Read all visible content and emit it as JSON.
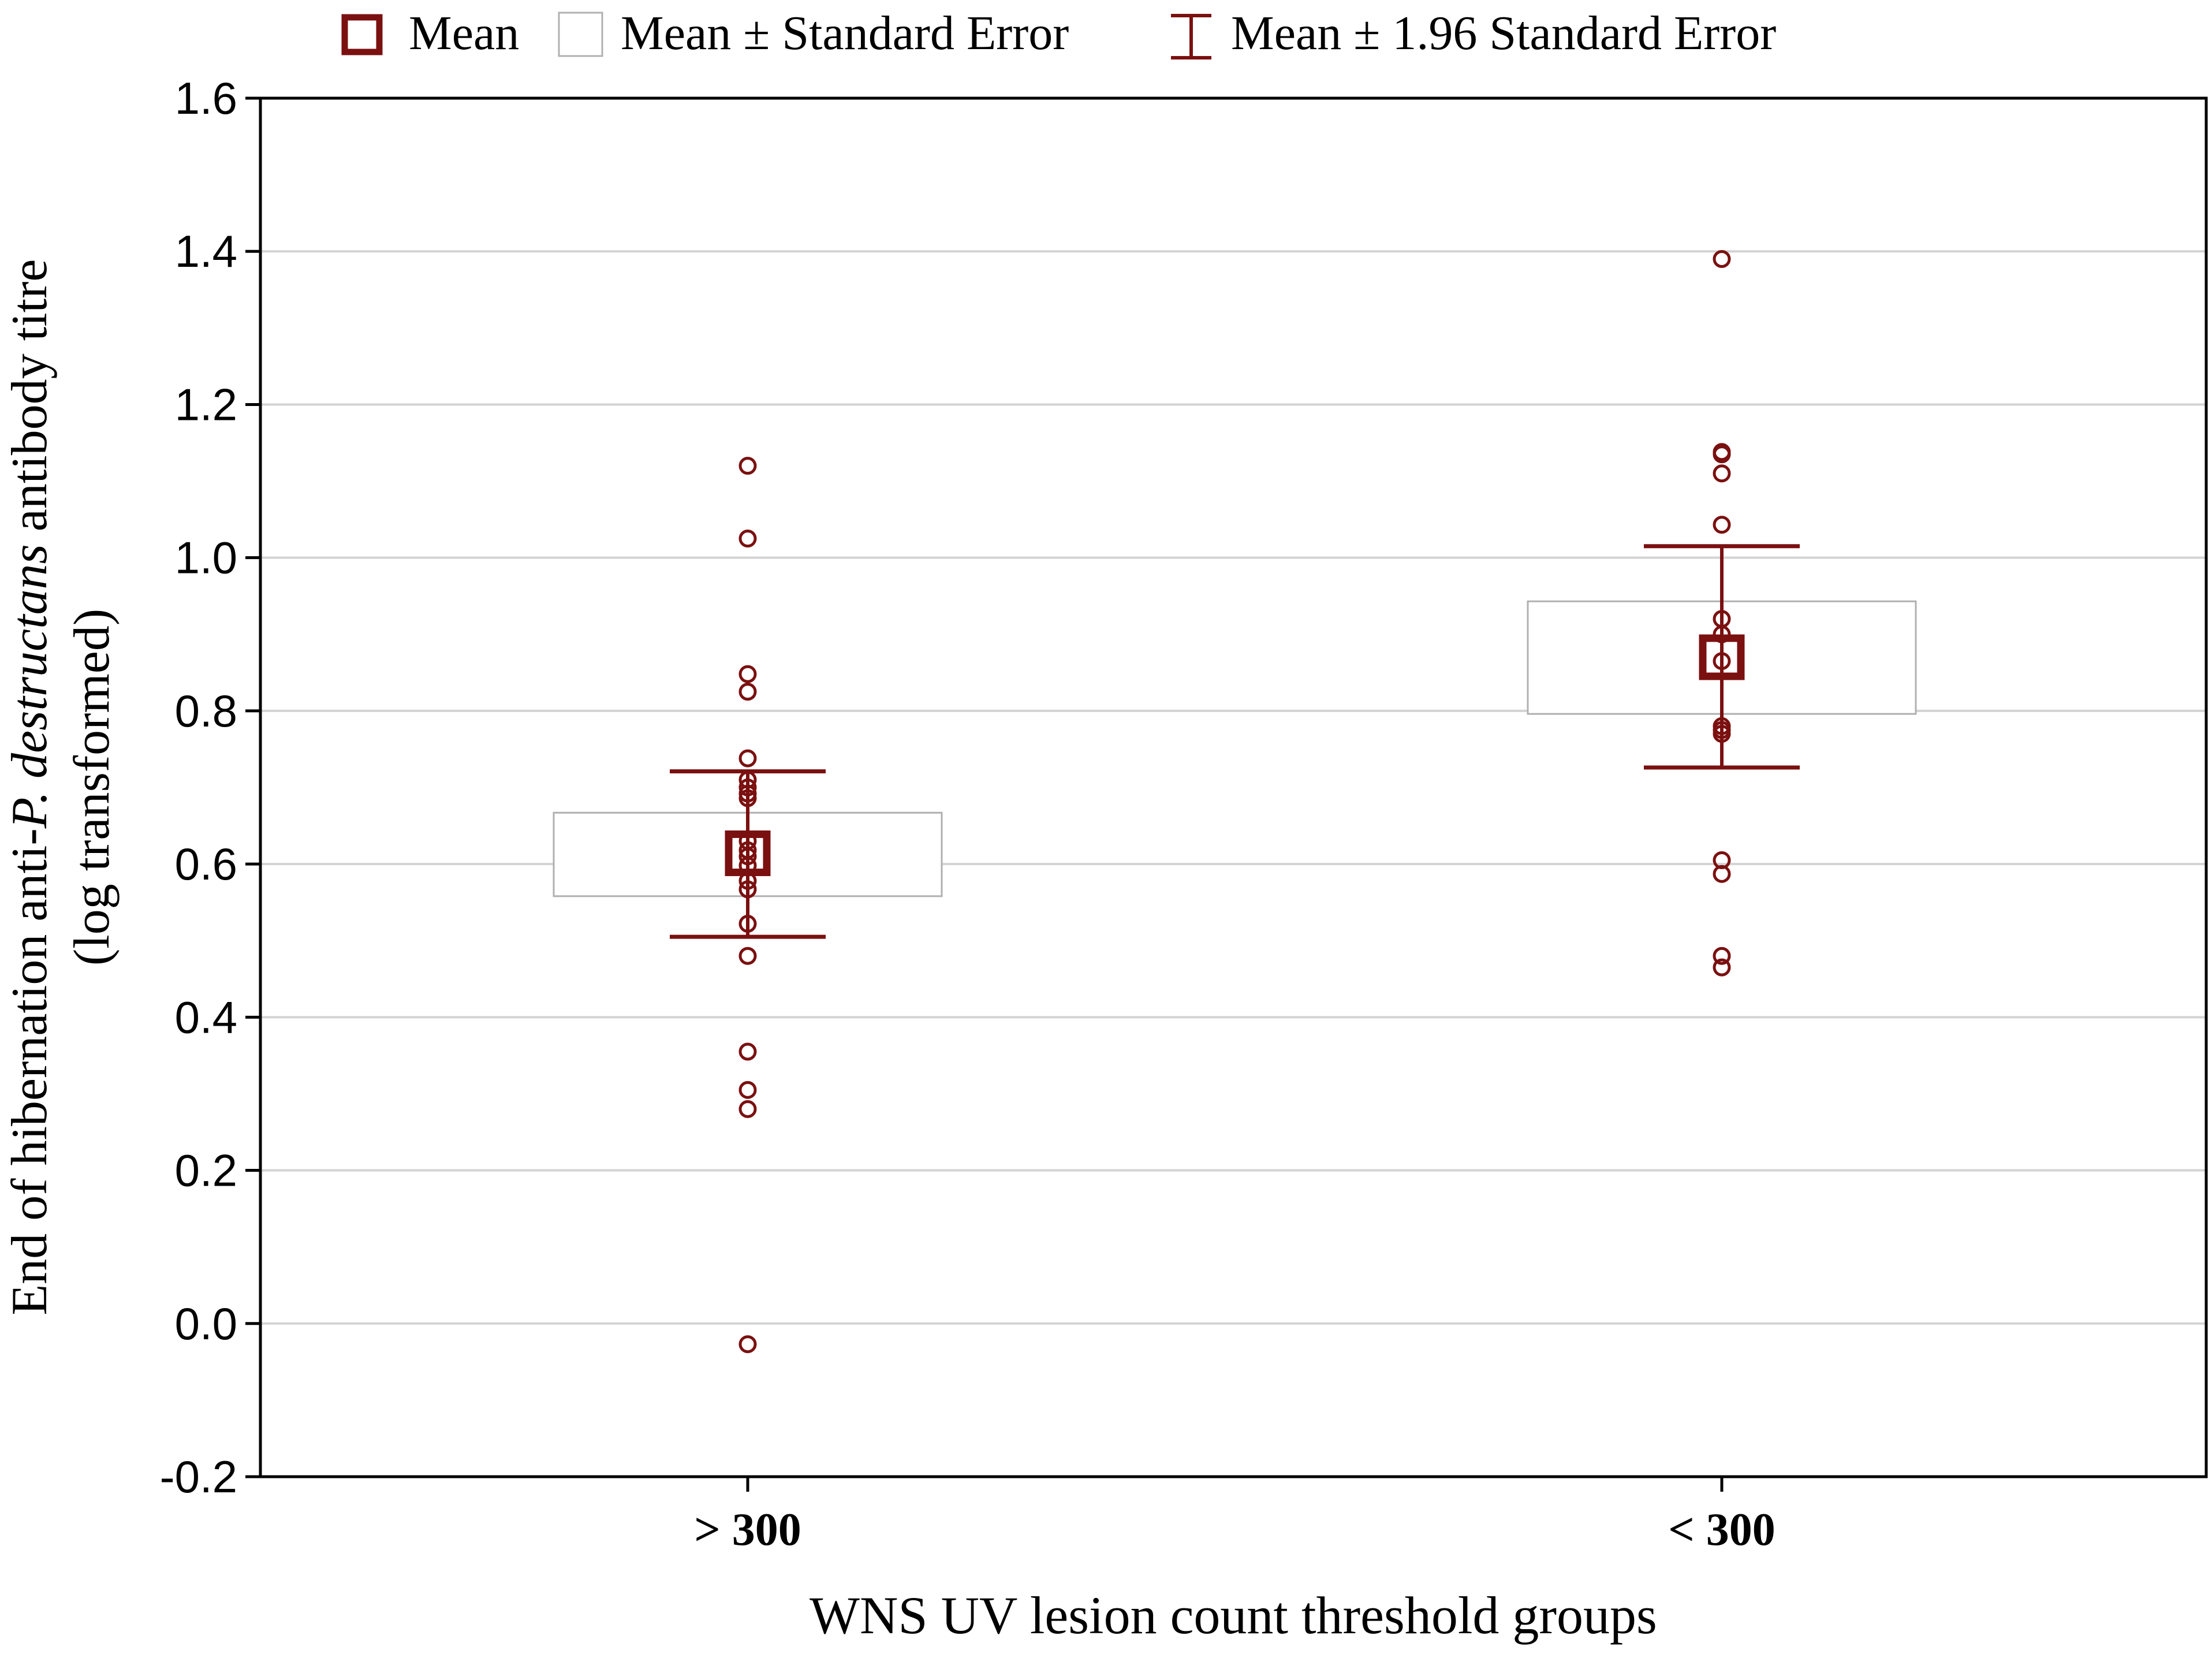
{
  "chart_data": {
    "type": "box",
    "title": "",
    "xlabel": "WNS UV lesion count threshold groups",
    "ylabel_line1_pre": "End of hibernation anti-",
    "ylabel_line1_italic": "P. destructans",
    "ylabel_line1_post": " antibody titre",
    "ylabel_line2": "(log transformed)",
    "ylim": [
      -0.2,
      1.6
    ],
    "yticks": [
      -0.2,
      0.0,
      0.2,
      0.4,
      0.6,
      0.8,
      1.0,
      1.2,
      1.4,
      1.6
    ],
    "ytick_labels": [
      "-0.2",
      "0.0",
      "0.2",
      "0.4",
      "0.6",
      "0.8",
      "1.0",
      "1.2",
      "1.4",
      "1.6"
    ],
    "grid": true,
    "legend_position": "top",
    "legend": {
      "mean": "Mean",
      "se": "Mean ± Standard Error",
      "ci": "Mean ± 1.96 Standard Error"
    },
    "colors": {
      "series": "#7b1010",
      "box_stroke": "#b0b0b0",
      "grid": "#d3d3d3",
      "axis": "#000000"
    },
    "groups": [
      {
        "label": "> 300",
        "mean": 0.614,
        "se_low": 0.558,
        "se_high": 0.667,
        "ci_low": 0.505,
        "ci_high": 0.721,
        "points": [
          1.12,
          1.025,
          0.848,
          0.825,
          0.738,
          0.71,
          0.7,
          0.692,
          0.686,
          0.63,
          0.618,
          0.61,
          0.598,
          0.578,
          0.567,
          0.522,
          0.48,
          0.355,
          0.305,
          0.28,
          -0.027
        ]
      },
      {
        "label": "< 300",
        "mean": 0.87,
        "se_low": 0.796,
        "se_high": 0.943,
        "ci_low": 0.726,
        "ci_high": 1.015,
        "points": [
          1.39,
          1.138,
          1.135,
          1.11,
          1.043,
          0.92,
          0.9,
          0.865,
          0.78,
          0.775,
          0.77,
          0.605,
          0.587,
          0.48,
          0.465
        ]
      }
    ]
  }
}
